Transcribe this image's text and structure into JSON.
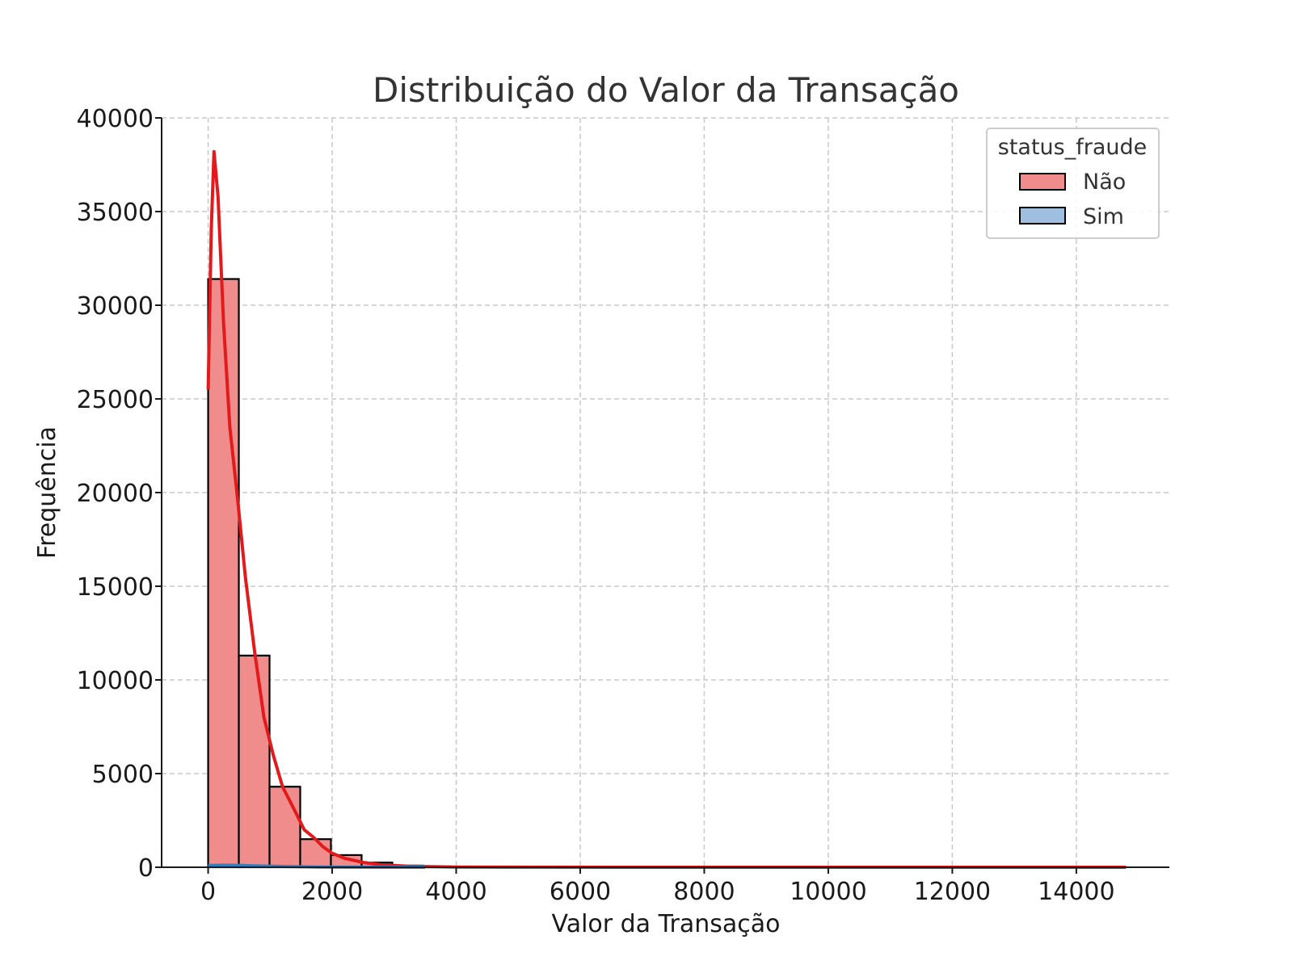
{
  "chart_data": {
    "type": "bar",
    "title": "Distribuição do Valor da Transação",
    "xlabel": "Valor da Transação",
    "ylabel": "Frequência",
    "xlim": [
      -750,
      15500
    ],
    "ylim": [
      0,
      40000
    ],
    "x_ticks": [
      0,
      2000,
      4000,
      6000,
      8000,
      10000,
      12000,
      14000
    ],
    "y_ticks": [
      0,
      5000,
      10000,
      15000,
      20000,
      25000,
      30000,
      35000,
      40000
    ],
    "grid": true,
    "legend": {
      "title": "status_fraude",
      "position": "top-right"
    },
    "bin_width": 495,
    "series": [
      {
        "name": "Não",
        "color": "#f08c8c",
        "kde_color": "#e31a1c",
        "bins": [
          {
            "x0": 0,
            "x1": 495,
            "count": 31400
          },
          {
            "x0": 495,
            "x1": 990,
            "count": 11300
          },
          {
            "x0": 990,
            "x1": 1485,
            "count": 4300
          },
          {
            "x0": 1485,
            "x1": 1980,
            "count": 1500
          },
          {
            "x0": 1980,
            "x1": 2475,
            "count": 650
          },
          {
            "x0": 2475,
            "x1": 2970,
            "count": 250
          },
          {
            "x0": 2970,
            "x1": 3465,
            "count": 90
          },
          {
            "x0": 3465,
            "x1": 3960,
            "count": 40
          },
          {
            "x0": 3960,
            "x1": 4455,
            "count": 15
          }
        ],
        "kde": [
          [
            0,
            25500
          ],
          [
            50,
            34000
          ],
          [
            95,
            38200
          ],
          [
            160,
            35800
          ],
          [
            250,
            29000
          ],
          [
            350,
            23500
          ],
          [
            480,
            19500
          ],
          [
            600,
            15500
          ],
          [
            750,
            11500
          ],
          [
            900,
            8000
          ],
          [
            1050,
            6000
          ],
          [
            1200,
            4300
          ],
          [
            1400,
            3000
          ],
          [
            1550,
            2000
          ],
          [
            1700,
            1600
          ],
          [
            1850,
            1100
          ],
          [
            2000,
            750
          ],
          [
            2200,
            480
          ],
          [
            2500,
            260
          ],
          [
            2800,
            130
          ],
          [
            3200,
            60
          ],
          [
            3600,
            30
          ],
          [
            4000,
            15
          ],
          [
            5000,
            5
          ],
          [
            7000,
            2
          ],
          [
            10000,
            1
          ],
          [
            12000,
            1
          ],
          [
            14800,
            0
          ]
        ]
      },
      {
        "name": "Sim",
        "color": "#9ebfe0",
        "kde_color": "#377eb8",
        "bins": [
          {
            "x0": 0,
            "x1": 495,
            "count": 110
          },
          {
            "x0": 495,
            "x1": 990,
            "count": 70
          },
          {
            "x0": 990,
            "x1": 1485,
            "count": 35
          },
          {
            "x0": 1485,
            "x1": 1980,
            "count": 15
          }
        ],
        "kde": [
          [
            0,
            90
          ],
          [
            300,
            110
          ],
          [
            700,
            80
          ],
          [
            1200,
            45
          ],
          [
            1800,
            15
          ],
          [
            2500,
            5
          ],
          [
            3500,
            0
          ]
        ]
      }
    ]
  }
}
